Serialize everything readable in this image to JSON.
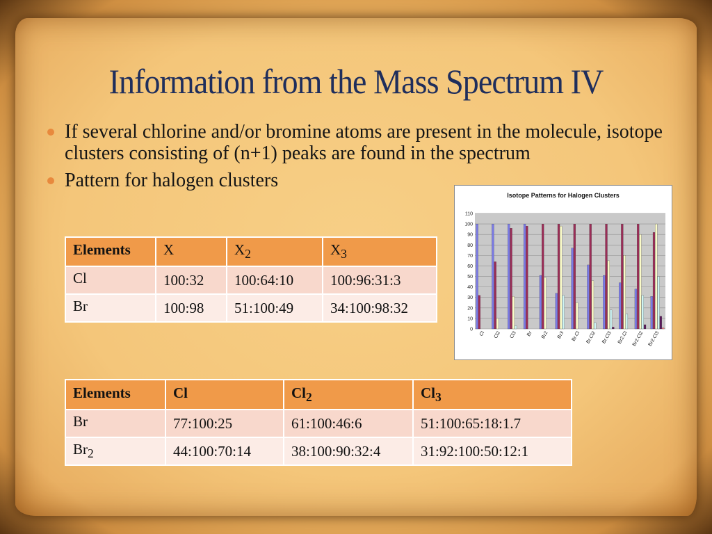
{
  "slide": {
    "title": "Information from the Mass Spectrum IV",
    "bullets": [
      "If several chlorine and/or bromine atoms are present in the molecule, isotope clusters consisting of (n+1) peaks are found in the spectrum",
      "Pattern for halogen clusters"
    ]
  },
  "table1": {
    "header": [
      "Elements",
      "X",
      "X",
      "X"
    ],
    "header_subscripts": [
      "",
      "",
      "2",
      "3"
    ],
    "rows": [
      {
        "label": "Cl",
        "sub": "",
        "cells": [
          "100:32",
          "100:64:10",
          "100:96:31:3"
        ]
      },
      {
        "label": "Br",
        "sub": "",
        "cells": [
          "100:98",
          "51:100:49",
          "34:100:98:32"
        ]
      }
    ]
  },
  "table2": {
    "header": [
      "Elements",
      "Cl",
      "Cl",
      "Cl"
    ],
    "header_subscripts": [
      "",
      "",
      "2",
      "3"
    ],
    "rows": [
      {
        "label": "Br",
        "sub": "",
        "cells": [
          "77:100:25",
          "61:100:46:6",
          "51:100:65:18:1.7"
        ]
      },
      {
        "label": "Br",
        "sub": "2",
        "cells": [
          "44:100:70:14",
          "38:100:90:32:4",
          "31:92:100:50:12:1"
        ]
      }
    ]
  },
  "chart_data": {
    "type": "bar",
    "title": "Isotope Patterns for Halogen Clusters",
    "categories": [
      "Cl",
      "Cl2",
      "Cl3",
      "Br",
      "Br2",
      "Br3",
      "Br.Cl",
      "Br.Cl2",
      "Br.Cl3",
      "Br2.Cl",
      "Br2.Cl2",
      "Br2.Cl3"
    ],
    "yticks": [
      0,
      10,
      20,
      30,
      40,
      50,
      60,
      70,
      80,
      90,
      100,
      110
    ],
    "ylim": [
      0,
      110
    ],
    "grid": true,
    "series": [
      {
        "color": "#7b7be8",
        "values": [
          100,
          100,
          100,
          100,
          51,
          34,
          77,
          61,
          51,
          44,
          38,
          31
        ]
      },
      {
        "color": "#9b2c57",
        "values": [
          32,
          64,
          96,
          98,
          100,
          100,
          100,
          100,
          100,
          100,
          100,
          92
        ]
      },
      {
        "color": "#fbfbc8",
        "values": [
          0,
          10,
          31,
          0,
          49,
          98,
          25,
          46,
          65,
          70,
          90,
          100
        ]
      },
      {
        "color": "#cdf3f3",
        "values": [
          0,
          0,
          3,
          0,
          0,
          32,
          0,
          6,
          18,
          14,
          32,
          50
        ]
      },
      {
        "color": "#5a1a5a",
        "values": [
          0,
          0,
          0,
          0,
          0,
          0,
          0,
          0,
          1.7,
          0,
          4,
          12
        ]
      },
      {
        "color": "#ff8080",
        "values": [
          0,
          0,
          0,
          0,
          0,
          0,
          0,
          0,
          0,
          0,
          0,
          1
        ]
      }
    ]
  }
}
